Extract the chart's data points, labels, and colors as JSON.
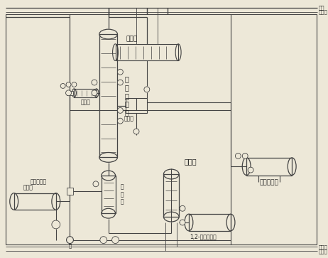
{
  "bg_color": "#ede8d8",
  "line_color": "#444444",
  "fig_width": 4.62,
  "fig_height": 3.63,
  "dpi": 100,
  "labels": {
    "steam": "蒸汽",
    "cooling_water_top": "冷却水",
    "condenser": "冷凝器",
    "separator": "分液器",
    "azeotrope_tank": "共沸液储罐",
    "preheater": "预热器",
    "column": "共\n沸\n精\n馏\n塔",
    "cooler": "冷却器",
    "reboiler": "再\n沸\n器",
    "feed_label1": "原料液储罐",
    "feed_label2": "共沸剂",
    "pentanediol_tank": "1,2-戊二醇储罐",
    "cooling_water_bot": "冷却水",
    "condensate_bot": "冷凝水"
  }
}
